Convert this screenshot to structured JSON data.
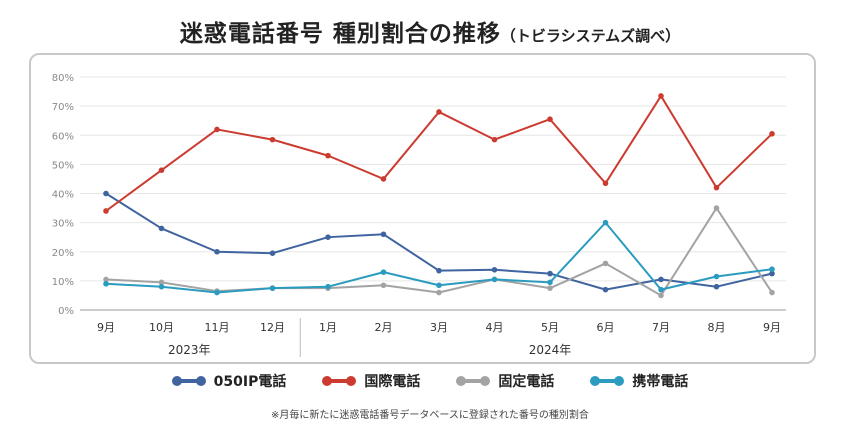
{
  "title": "迷惑電話番号 種別割合の推移",
  "subtitle": "（トビラシステムズ調べ）",
  "footnote": "※月毎に新たに迷惑電話番号データベースに登録された番号の種別割合",
  "chart_data": {
    "type": "line",
    "title": "迷惑電話番号 種別割合の推移",
    "subtitle": "（トビラシステムズ調べ）",
    "categories": [
      "9月",
      "10月",
      "11月",
      "12月",
      "1月",
      "2月",
      "3月",
      "4月",
      "5月",
      "6月",
      "7月",
      "8月",
      "9月"
    ],
    "year_groups": [
      {
        "label": "2023年",
        "from": 0,
        "to": 3
      },
      {
        "label": "2024年",
        "from": 4,
        "to": 12
      }
    ],
    "yticks": [
      "0%",
      "10%",
      "20%",
      "30%",
      "40%",
      "50%",
      "60%",
      "70%",
      "80%"
    ],
    "ylim": [
      0,
      80
    ],
    "grid": true,
    "legend_position": "bottom",
    "series": [
      {
        "name": "050IP電話",
        "color": "#3f64a0",
        "values": [
          40,
          28,
          20,
          19.5,
          25,
          26,
          13.5,
          13.8,
          12.5,
          7,
          10.5,
          8,
          12.5
        ]
      },
      {
        "name": "国際電話",
        "color": "#cc3b30",
        "values": [
          34,
          48,
          62,
          58.5,
          53,
          45,
          68,
          58.5,
          65.5,
          43.5,
          73.5,
          42,
          60.5
        ]
      },
      {
        "name": "固定電話",
        "color": "#a3a3a3",
        "values": [
          10.5,
          9.5,
          6.5,
          7.5,
          7.5,
          8.5,
          6,
          10.5,
          7.5,
          16,
          5,
          35,
          6
        ]
      },
      {
        "name": "携帯電話",
        "color": "#2b9cbf",
        "values": [
          9,
          8,
          6,
          7.5,
          8,
          13,
          8.5,
          10.5,
          9.5,
          30,
          7,
          11.5,
          14
        ]
      }
    ]
  }
}
